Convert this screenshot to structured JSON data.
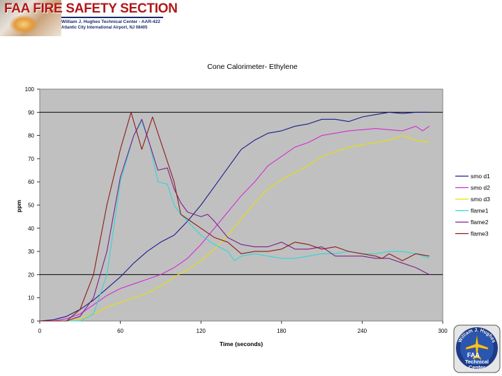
{
  "header": {
    "brand": "FAA FIRE SAFETY SECTION",
    "line1": "William J. Hughes Technical Center - AAR-422",
    "line2": "Atlantic City International Airport, NJ 08405"
  },
  "logo": {
    "arc_text": "William J. Hughes",
    "faa": "FAA",
    "line1": "Technical",
    "line2": "Center"
  },
  "chart_data": {
    "type": "line",
    "title": "Cone Calorimeter- Ethylene",
    "xlabel": "Time (seconds)",
    "ylabel": "ppm",
    "xlim": [
      0,
      300
    ],
    "ylim": [
      0,
      100
    ],
    "x_ticks": [
      0,
      60,
      120,
      180,
      240,
      300
    ],
    "y_ticks": [
      0,
      10,
      20,
      30,
      40,
      50,
      60,
      70,
      80,
      90,
      100
    ],
    "reference_lines": [
      90,
      20
    ],
    "grid": false,
    "legend": "right",
    "series": [
      {
        "name": "smo d1",
        "color": "#1a1a8c",
        "points": [
          [
            0,
            0
          ],
          [
            10,
            0.5
          ],
          [
            20,
            2
          ],
          [
            30,
            5
          ],
          [
            40,
            9
          ],
          [
            50,
            14
          ],
          [
            60,
            19
          ],
          [
            70,
            25
          ],
          [
            80,
            30
          ],
          [
            90,
            34
          ],
          [
            100,
            37
          ],
          [
            110,
            43
          ],
          [
            120,
            50
          ],
          [
            130,
            58
          ],
          [
            140,
            66
          ],
          [
            150,
            74
          ],
          [
            160,
            78
          ],
          [
            170,
            81
          ],
          [
            180,
            82
          ],
          [
            190,
            84
          ],
          [
            200,
            85
          ],
          [
            210,
            87
          ],
          [
            220,
            87
          ],
          [
            230,
            86
          ],
          [
            240,
            88
          ],
          [
            250,
            89
          ],
          [
            260,
            90
          ],
          [
            270,
            89.5
          ],
          [
            280,
            90
          ],
          [
            290,
            90
          ]
        ]
      },
      {
        "name": "smo d2",
        "color": "#d12cd1",
        "points": [
          [
            0,
            0
          ],
          [
            10,
            0
          ],
          [
            20,
            1
          ],
          [
            30,
            3
          ],
          [
            40,
            7
          ],
          [
            50,
            11
          ],
          [
            60,
            14
          ],
          [
            70,
            16
          ],
          [
            80,
            18
          ],
          [
            90,
            20
          ],
          [
            100,
            23
          ],
          [
            110,
            27
          ],
          [
            120,
            33
          ],
          [
            130,
            40
          ],
          [
            140,
            47
          ],
          [
            150,
            54
          ],
          [
            160,
            60
          ],
          [
            170,
            67
          ],
          [
            180,
            71
          ],
          [
            190,
            75
          ],
          [
            200,
            77
          ],
          [
            210,
            80
          ],
          [
            220,
            81
          ],
          [
            230,
            82
          ],
          [
            240,
            82.5
          ],
          [
            250,
            83
          ],
          [
            260,
            82.5
          ],
          [
            270,
            82
          ],
          [
            280,
            84
          ],
          [
            285,
            82
          ],
          [
            290,
            84
          ]
        ]
      },
      {
        "name": "smo d3",
        "color": "#e8e000",
        "points": [
          [
            0,
            0
          ],
          [
            20,
            0
          ],
          [
            30,
            1
          ],
          [
            40,
            3
          ],
          [
            50,
            6
          ],
          [
            60,
            8
          ],
          [
            70,
            10
          ],
          [
            80,
            12
          ],
          [
            90,
            15
          ],
          [
            100,
            19
          ],
          [
            110,
            22
          ],
          [
            120,
            26
          ],
          [
            130,
            31
          ],
          [
            140,
            37
          ],
          [
            150,
            44
          ],
          [
            160,
            51
          ],
          [
            170,
            57
          ],
          [
            180,
            61
          ],
          [
            190,
            64
          ],
          [
            200,
            67
          ],
          [
            210,
            71
          ],
          [
            220,
            73
          ],
          [
            230,
            75
          ],
          [
            240,
            76
          ],
          [
            250,
            77
          ],
          [
            260,
            78
          ],
          [
            270,
            80
          ],
          [
            280,
            78
          ],
          [
            290,
            77
          ]
        ]
      },
      {
        "name": "flame1",
        "color": "#30d6d6",
        "points": [
          [
            0,
            0
          ],
          [
            30,
            0
          ],
          [
            40,
            3
          ],
          [
            50,
            20
          ],
          [
            60,
            60
          ],
          [
            70,
            80
          ],
          [
            76,
            86
          ],
          [
            82,
            76
          ],
          [
            88,
            60
          ],
          [
            95,
            59
          ],
          [
            100,
            50
          ],
          [
            105,
            46
          ],
          [
            110,
            43
          ],
          [
            120,
            37
          ],
          [
            130,
            33
          ],
          [
            140,
            30
          ],
          [
            145,
            26
          ],
          [
            150,
            28
          ],
          [
            160,
            29
          ],
          [
            170,
            28
          ],
          [
            180,
            27
          ],
          [
            190,
            27
          ],
          [
            200,
            28
          ],
          [
            210,
            29
          ],
          [
            220,
            29
          ],
          [
            230,
            30
          ],
          [
            240,
            29
          ],
          [
            250,
            29
          ],
          [
            260,
            30
          ],
          [
            270,
            30
          ],
          [
            280,
            29
          ],
          [
            290,
            27
          ]
        ]
      },
      {
        "name": "flame2",
        "color": "#7a1f8c",
        "points": [
          [
            0,
            0
          ],
          [
            20,
            0
          ],
          [
            30,
            2
          ],
          [
            40,
            10
          ],
          [
            50,
            30
          ],
          [
            60,
            62
          ],
          [
            70,
            80
          ],
          [
            76,
            87
          ],
          [
            82,
            76
          ],
          [
            88,
            65
          ],
          [
            95,
            66
          ],
          [
            100,
            57
          ],
          [
            105,
            51
          ],
          [
            110,
            47
          ],
          [
            120,
            45
          ],
          [
            125,
            46
          ],
          [
            130,
            43
          ],
          [
            140,
            36
          ],
          [
            150,
            33
          ],
          [
            160,
            32
          ],
          [
            170,
            32
          ],
          [
            180,
            34
          ],
          [
            190,
            31
          ],
          [
            200,
            31
          ],
          [
            210,
            32
          ],
          [
            220,
            28
          ],
          [
            230,
            28
          ],
          [
            240,
            28
          ],
          [
            250,
            27
          ],
          [
            260,
            27
          ],
          [
            270,
            25
          ],
          [
            280,
            23
          ],
          [
            290,
            20
          ]
        ]
      },
      {
        "name": "flame3",
        "color": "#8c1a1a",
        "points": [
          [
            0,
            0
          ],
          [
            20,
            0
          ],
          [
            30,
            5
          ],
          [
            40,
            20
          ],
          [
            50,
            50
          ],
          [
            60,
            74
          ],
          [
            68,
            90
          ],
          [
            76,
            74
          ],
          [
            84,
            88
          ],
          [
            92,
            74
          ],
          [
            100,
            60
          ],
          [
            105,
            46
          ],
          [
            110,
            44
          ],
          [
            120,
            40
          ],
          [
            130,
            36
          ],
          [
            140,
            34
          ],
          [
            150,
            29
          ],
          [
            160,
            30
          ],
          [
            170,
            30
          ],
          [
            180,
            31
          ],
          [
            190,
            34
          ],
          [
            200,
            33
          ],
          [
            210,
            31
          ],
          [
            220,
            32
          ],
          [
            230,
            30
          ],
          [
            240,
            29
          ],
          [
            250,
            28
          ],
          [
            255,
            27
          ],
          [
            260,
            29
          ],
          [
            270,
            26
          ],
          [
            280,
            29
          ],
          [
            290,
            28
          ]
        ]
      }
    ]
  }
}
